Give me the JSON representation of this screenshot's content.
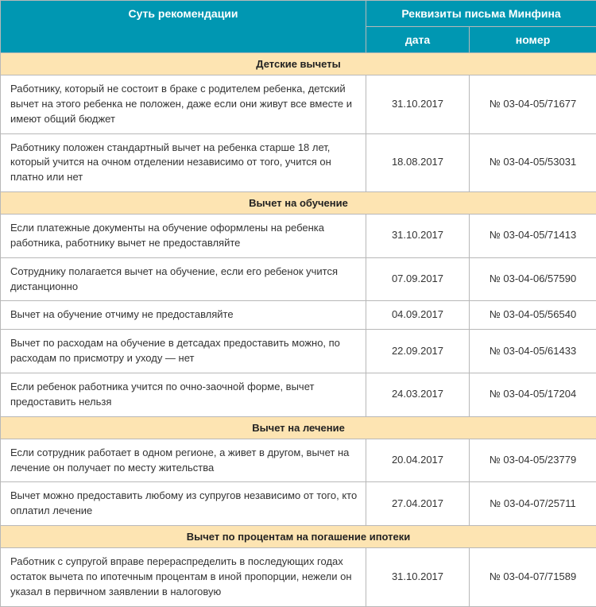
{
  "header": {
    "col1": "Суть рекомендации",
    "col2_group": "Реквизиты письма Минфина",
    "col2a": "дата",
    "col2b": "номер"
  },
  "sections": [
    {
      "title": "Детские вычеты",
      "rows": [
        {
          "desc": "Работнику, который не состоит в браке с родителем ребенка, детский вычет на этого ребенка не положен, даже если они живут все вместе и имеют общий бюджет",
          "date": "31.10.2017",
          "num": "№ 03-04-05/71677"
        },
        {
          "desc": "Работнику положен стандартный вычет на ребенка старше 18 лет, который учится на очном отделении независимо от того, учится он платно или нет",
          "date": "18.08.2017",
          "num": "№ 03-04-05/53031"
        }
      ]
    },
    {
      "title": "Вычет на обучение",
      "rows": [
        {
          "desc": "Если платежные документы на обучение оформлены на ребенка работника, работнику вычет не предоставляйте",
          "date": "31.10.2017",
          "num": "№ 03-04-05/71413"
        },
        {
          "desc": "Сотруднику полагается вычет на обучение, если его ребенок учится дистанционно",
          "date": "07.09.2017",
          "num": "№ 03-04-06/57590"
        },
        {
          "desc": "Вычет на обучение отчиму не предоставляйте",
          "date": "04.09.2017",
          "num": "№  03-04-05/56540"
        },
        {
          "desc": "Вычет по расходам на обучение в детсадах предоставить можно, по расходам по присмотру и уходу — нет",
          "date": "22.09.2017",
          "num": "№ 03-04-05/61433"
        },
        {
          "desc": "Если ребенок работника учится по очно-заочной форме, вычет предоставить нельзя",
          "date": "24.03.2017",
          "num": "№ 03-04-05/17204"
        }
      ]
    },
    {
      "title": "Вычет на лечение",
      "rows": [
        {
          "desc": "Если сотрудник работает в одном регионе, а живет в другом, вычет на лечение он получает по месту жительства",
          "date": "20.04.2017",
          "num": "№ 03-04-05/23779"
        },
        {
          "desc": "Вычет можно предоставить любому из супругов независимо от того, кто оплатил лечение",
          "date": "27.04.2017",
          "num": "№ 03-04-07/25711"
        }
      ]
    },
    {
      "title": "Вычет по процентам на погашение ипотеки",
      "rows": [
        {
          "desc": "Работник с супругой вправе перераспределить в последующих годах остаток вычета по ипотечным процентам в иной пропорции, нежели он указал в первичном заявлении в налоговую",
          "date": "31.10.2017",
          "num": "№ 03-04-07/71589"
        }
      ]
    }
  ],
  "colors": {
    "header_bg": "#0097b2",
    "header_fg": "#ffffff",
    "section_bg": "#fde4b2",
    "border": "#b8b8b8",
    "text": "#333333"
  }
}
